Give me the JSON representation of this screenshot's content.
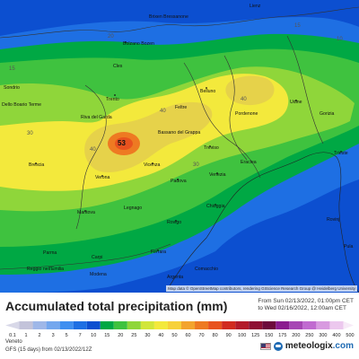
{
  "map": {
    "attribution": "Map data © OpenStreetMap contributors, rendering GIScience Research Group @ Heidelberg University",
    "max_value": "53",
    "contour_labels": [
      "20",
      "15",
      "15",
      "10",
      "40",
      "40",
      "40",
      "30",
      "30"
    ],
    "cities": [
      "Lienz",
      "Bolzano\nBozen",
      "Brixen\nBressanone",
      "Sondrio",
      "Trento",
      "Riva del\nGarda",
      "Belluno",
      "Feltre",
      "Pordenone",
      "Udine",
      "Gorizia",
      "Trieste",
      "Bassano\ndel Grappa",
      "Treviso",
      "Vicenza",
      "Verona",
      "Padova",
      "Venezia",
      "Eraclea",
      "Chioggia",
      "Mantova",
      "Legnago",
      "Rovigo",
      "Parma",
      "Carpi",
      "Ferrara",
      "Reggio nell'Emilia",
      "Modena",
      "Argenta",
      "Comacchio",
      "Rovinj",
      "Pula",
      "Brescia",
      "Cles",
      "Dello\nBoario\nTerme"
    ]
  },
  "legend": {
    "title": "Accumulated total precipitation",
    "unit": "(mm)",
    "range_from": "From Sun 02/13/2022, 01:00pm CET",
    "range_to": "to Wed 02/16/2022, 12:00am CET",
    "ticks": [
      "0.1",
      "1",
      "2",
      "3",
      "5",
      "7",
      "10",
      "15",
      "20",
      "25",
      "30",
      "40",
      "50",
      "60",
      "70",
      "80",
      "90",
      "100",
      "125",
      "150",
      "175",
      "200",
      "250",
      "300",
      "400",
      "500"
    ],
    "colors": [
      "#d8d8e8",
      "#c3c3da",
      "#9fb7e8",
      "#74a7ee",
      "#3f8ff0",
      "#1e6fe3",
      "#0c4fd0",
      "#00a844",
      "#3fc23f",
      "#8fd63a",
      "#d1e63a",
      "#f3e93c",
      "#f7d13a",
      "#f3a42d",
      "#ee7a22",
      "#e8521e",
      "#d12a1f",
      "#b31a2a",
      "#8e1033",
      "#6d0a3b",
      "#8b1c8f",
      "#a646b4",
      "#c06ad0",
      "#d89ae0",
      "#ecc8ee",
      "#f7eaf7"
    ]
  },
  "footer": {
    "region": "Veneto",
    "run": "GFS (15 days) from 02/13/2022/12Z",
    "brand_prefix": "meteologix",
    "brand_suffix": ".com"
  },
  "colors": {
    "outer_blue": "#0c4fd0",
    "mid_blue": "#1e6fe3",
    "green": "#00a844",
    "light_green": "#3fc23f",
    "yellow_green": "#8fd63a",
    "yellow": "#f3e93c",
    "gold": "#e6d24a",
    "orange": "#ee7a22"
  }
}
